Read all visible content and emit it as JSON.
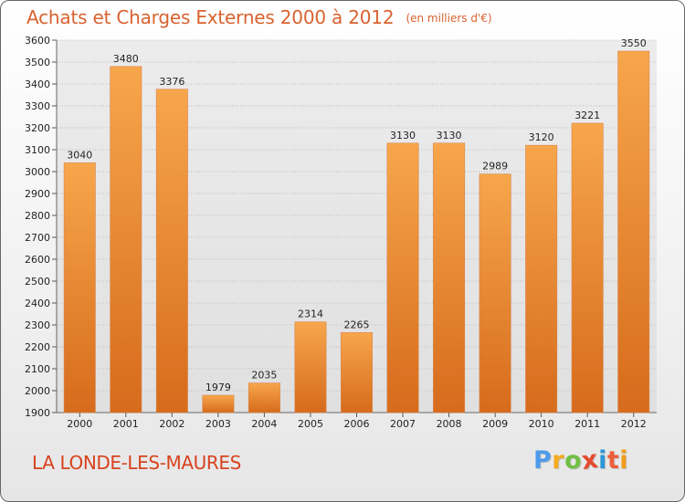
{
  "header": {
    "title": "Achats et Charges Externes 2000 à 2012",
    "subtitle": "(en milliers d'€)"
  },
  "footer": {
    "commune": "LA LONDE-LES-MAURES",
    "logo_text": "Proxiti"
  },
  "colors": {
    "title": "#d9622f",
    "commune": "#d8431f",
    "bar_top": "#f7a64c",
    "bar_bottom": "#d66b1c",
    "grid": "#bcbcbc",
    "plot_bg": "#e7e7e7"
  },
  "chart_data": {
    "type": "bar",
    "title": "Achats et Charges Externes 2000 à 2012",
    "subtitle": "(en milliers d'€)",
    "xlabel": "",
    "ylabel": "",
    "categories": [
      "2000",
      "2001",
      "2002",
      "2003",
      "2004",
      "2005",
      "2006",
      "2007",
      "2008",
      "2009",
      "2010",
      "2011",
      "2012"
    ],
    "values": [
      3040,
      3480,
      3376,
      1979,
      2035,
      2314,
      2265,
      3130,
      3130,
      2989,
      3120,
      3221,
      3550
    ],
    "ylim": [
      1900,
      3600
    ],
    "yticks": [
      1900,
      2000,
      2100,
      2200,
      2300,
      2400,
      2500,
      2600,
      2700,
      2800,
      2900,
      3000,
      3100,
      3200,
      3300,
      3400,
      3500,
      3600
    ],
    "grid": true,
    "legend": "none"
  }
}
